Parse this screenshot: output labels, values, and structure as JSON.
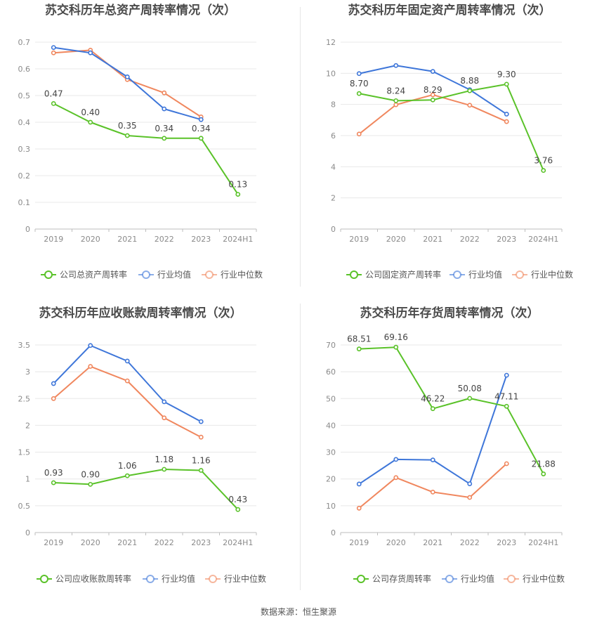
{
  "colors": {
    "company": "#5ac229",
    "industry_avg": "#3e76d9",
    "industry_median": "#f0875e",
    "grid": "#e8e8e8",
    "axis_text": "#8a8a8a",
    "title_text": "#4a4a4a",
    "label_text": "#444444"
  },
  "source_text": "数据来源：恒生聚源",
  "chart_data": [
    {
      "type": "line",
      "title": "苏交科历年总资产周转率情况（次）",
      "categories": [
        "2019",
        "2020",
        "2021",
        "2022",
        "2023",
        "2024H1"
      ],
      "ylim": [
        0,
        0.7
      ],
      "yticks": [
        "0",
        "0.1",
        "0.2",
        "0.3",
        "0.4",
        "0.5",
        "0.6",
        "0.7"
      ],
      "grid": true,
      "legend_position": "bottom",
      "series": [
        {
          "name": "公司总资产周转率",
          "role": "company",
          "values": [
            0.47,
            0.4,
            0.35,
            0.34,
            0.34,
            0.13
          ],
          "labels": [
            "0.47",
            "0.40",
            "0.35",
            "0.34",
            "0.34",
            "0.13"
          ]
        },
        {
          "name": "行业均值",
          "role": "industry_avg",
          "values": [
            0.68,
            0.66,
            0.57,
            0.45,
            0.41,
            null
          ]
        },
        {
          "name": "行业中位数",
          "role": "industry_median",
          "values": [
            0.66,
            0.67,
            0.56,
            0.51,
            0.42,
            null
          ]
        }
      ]
    },
    {
      "type": "line",
      "title": "苏交科历年固定资产周转率情况（次）",
      "categories": [
        "2019",
        "2020",
        "2021",
        "2022",
        "2023",
        "2024H1"
      ],
      "ylim": [
        0,
        12
      ],
      "yticks": [
        "0",
        "2",
        "4",
        "6",
        "8",
        "10",
        "12"
      ],
      "grid": true,
      "legend_position": "bottom",
      "series": [
        {
          "name": "公司固定资产周转率",
          "role": "company",
          "values": [
            8.7,
            8.24,
            8.29,
            8.88,
            9.3,
            3.76
          ],
          "labels": [
            "8.70",
            "8.24",
            "8.29",
            "8.88",
            "9.30",
            "3.76"
          ]
        },
        {
          "name": "行业均值",
          "role": "industry_avg",
          "values": [
            9.98,
            10.5,
            10.12,
            8.95,
            7.38,
            null
          ]
        },
        {
          "name": "行业中位数",
          "role": "industry_median",
          "values": [
            6.1,
            7.98,
            8.62,
            7.95,
            6.9,
            null
          ]
        }
      ]
    },
    {
      "type": "line",
      "title": "苏交科历年应收账款周转率情况（次）",
      "categories": [
        "2019",
        "2020",
        "2021",
        "2022",
        "2023",
        "2024H1"
      ],
      "ylim": [
        0,
        3.5
      ],
      "yticks": [
        "0",
        "0.5",
        "1",
        "1.5",
        "2",
        "2.5",
        "3",
        "3.5"
      ],
      "grid": true,
      "legend_position": "bottom",
      "series": [
        {
          "name": "公司应收账款周转率",
          "role": "company",
          "values": [
            0.93,
            0.9,
            1.06,
            1.18,
            1.16,
            0.43
          ],
          "labels": [
            "0.93",
            "0.90",
            "1.06",
            "1.18",
            "1.16",
            "0.43"
          ]
        },
        {
          "name": "行业均值",
          "role": "industry_avg",
          "values": [
            2.78,
            3.49,
            3.2,
            2.44,
            2.07,
            null
          ]
        },
        {
          "name": "行业中位数",
          "role": "industry_median",
          "values": [
            2.5,
            3.1,
            2.83,
            2.14,
            1.78,
            null
          ]
        }
      ]
    },
    {
      "type": "line",
      "title": "苏交科历年存货周转率情况（次）",
      "categories": [
        "2019",
        "2020",
        "2021",
        "2022",
        "2023",
        "2024H1"
      ],
      "ylim": [
        0,
        70
      ],
      "yticks": [
        "0",
        "10",
        "20",
        "30",
        "40",
        "50",
        "60",
        "70"
      ],
      "grid": true,
      "legend_position": "bottom",
      "series": [
        {
          "name": "公司存货周转率",
          "role": "company",
          "values": [
            68.51,
            69.16,
            46.22,
            50.08,
            47.11,
            21.88
          ],
          "labels": [
            "68.51",
            "69.16",
            "46.22",
            "50.08",
            "47.11",
            "21.88"
          ]
        },
        {
          "name": "行业均值",
          "role": "industry_avg",
          "values": [
            18.1,
            27.3,
            27.1,
            18.2,
            58.7,
            null
          ]
        },
        {
          "name": "行业中位数",
          "role": "industry_median",
          "values": [
            9.1,
            20.5,
            15.1,
            13.1,
            25.7,
            null
          ]
        }
      ]
    }
  ]
}
